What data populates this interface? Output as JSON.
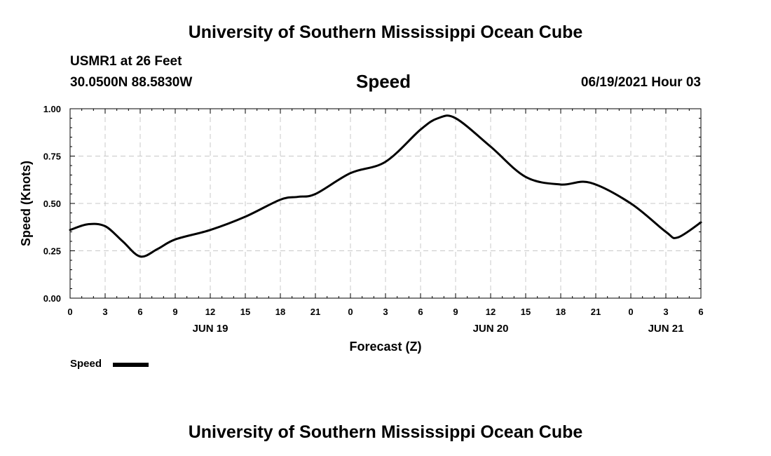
{
  "header": {
    "title": "University of Southern Mississippi Ocean Cube",
    "station": "USMR1 at 26 Feet",
    "coordinates": "30.0500N  88.5830W",
    "parameter": "Speed",
    "datetime": "06/19/2021 Hour 03"
  },
  "footer": {
    "title": "University of Southern Mississippi Ocean Cube"
  },
  "legend": {
    "label": "Speed"
  },
  "chart_data": {
    "type": "line",
    "title": "Speed",
    "xlabel": "Forecast (Z)",
    "ylabel": "Speed (Knots)",
    "ylim": [
      0,
      1
    ],
    "yticks": [
      0.0,
      0.25,
      0.5,
      0.75,
      1.0
    ],
    "ytick_labels": [
      "0.00",
      "0.25",
      "0.50",
      "0.75",
      "1.00"
    ],
    "xlim": [
      0,
      54
    ],
    "xticks": [
      0,
      3,
      6,
      9,
      12,
      15,
      18,
      21,
      24,
      27,
      30,
      33,
      36,
      39,
      42,
      45,
      48,
      51,
      54
    ],
    "xtick_labels": [
      "0",
      "3",
      "6",
      "9",
      "12",
      "15",
      "18",
      "21",
      "0",
      "3",
      "6",
      "9",
      "12",
      "15",
      "18",
      "21",
      "0",
      "3",
      "6"
    ],
    "date_labels": [
      {
        "label": "JUN 19",
        "x": 12
      },
      {
        "label": "JUN 20",
        "x": 36
      },
      {
        "label": "JUN 21",
        "x": 51
      }
    ],
    "grid": true,
    "series": [
      {
        "name": "Speed",
        "color": "#000000",
        "x": [
          0,
          1.5,
          3,
          4.5,
          6,
          7.5,
          9,
          12,
          15,
          18,
          19.5,
          21,
          24,
          27,
          30,
          31.5,
          33,
          36,
          39,
          42,
          44.5,
          48,
          51,
          52,
          54
        ],
        "values": [
          0.36,
          0.39,
          0.38,
          0.3,
          0.22,
          0.26,
          0.31,
          0.36,
          0.43,
          0.52,
          0.535,
          0.55,
          0.66,
          0.72,
          0.89,
          0.95,
          0.95,
          0.8,
          0.64,
          0.6,
          0.61,
          0.5,
          0.35,
          0.32,
          0.4
        ]
      }
    ]
  }
}
